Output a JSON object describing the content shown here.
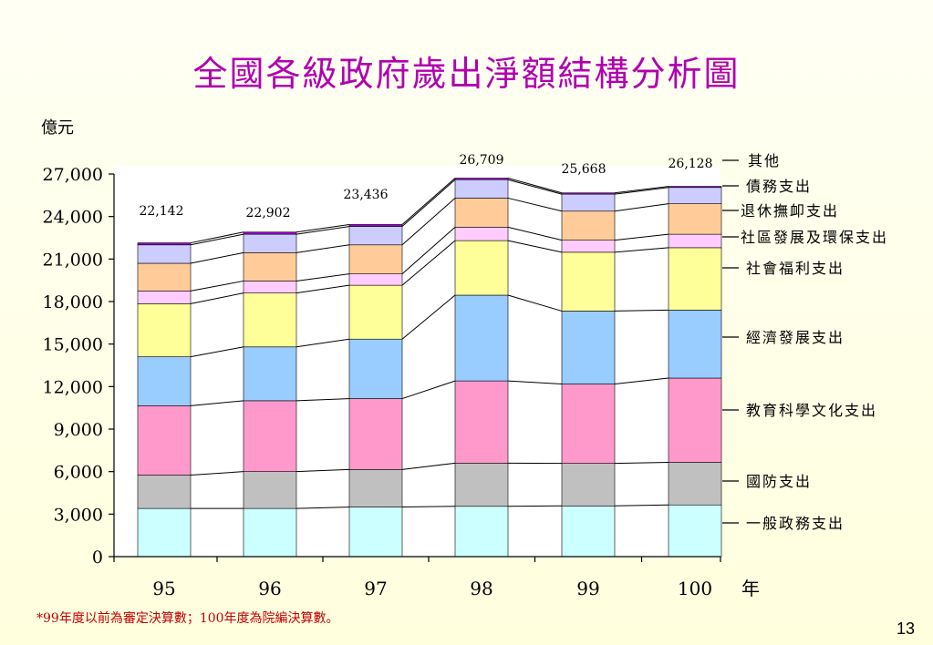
{
  "title": "全國各級政府歲出淨額結構分析圖",
  "footnote": "*99年度以前為審定決算數；100年度為院編決算數。",
  "page_number": "13",
  "chart_data": {
    "type": "bar",
    "stacked": true,
    "title": "全國各級政府歲出淨額結構分析圖",
    "ylabel": "億元",
    "xlabel": "年",
    "ylim": [
      0,
      27000
    ],
    "yticks": [
      0,
      3000,
      6000,
      9000,
      12000,
      15000,
      18000,
      21000,
      24000,
      27000
    ],
    "ytick_labels": [
      "0",
      "3,000",
      "6,000",
      "9,000",
      "12,000",
      "15,000",
      "18,000",
      "21,000",
      "24,000",
      "27,000"
    ],
    "categories": [
      "95",
      "96",
      "97",
      "98",
      "99",
      "100"
    ],
    "totals": [
      22142,
      22902,
      23436,
      26709,
      25668,
      26128
    ],
    "total_labels": [
      "22,142",
      "22,902",
      "23,436",
      "26,709",
      "25,668",
      "26,128"
    ],
    "series": [
      {
        "name": "一般政務支出",
        "color": "#ccffff",
        "values": [
          3400,
          3400,
          3500,
          3550,
          3580,
          3650
        ]
      },
      {
        "name": "國防支出",
        "color": "#c0c0c0",
        "values": [
          2350,
          2600,
          2650,
          3050,
          3000,
          3000
        ]
      },
      {
        "name": "教育科學文化支出",
        "color": "#ff99cc",
        "values": [
          4900,
          5000,
          5000,
          5800,
          5600,
          5950
        ]
      },
      {
        "name": "經濟發展支出",
        "color": "#99ccff",
        "values": [
          3450,
          3800,
          4200,
          6050,
          5150,
          4800
        ]
      },
      {
        "name": "社會福利支出",
        "color": "#ffff99",
        "values": [
          3750,
          3800,
          3800,
          3850,
          4150,
          4400
        ]
      },
      {
        "name": "社區發展及環保支出",
        "color": "#ffccff",
        "values": [
          900,
          850,
          800,
          950,
          850,
          950
        ]
      },
      {
        "name": "退休撫卹支出",
        "color": "#ffcc99",
        "values": [
          1950,
          2000,
          2050,
          2050,
          2050,
          2150
        ]
      },
      {
        "name": "債務支出",
        "color": "#ccccff",
        "values": [
          1300,
          1300,
          1300,
          1300,
          1200,
          1150
        ]
      },
      {
        "name": "其他",
        "color": "#9900cc",
        "values": [
          142,
          152,
          136,
          109,
          88,
          78
        ]
      }
    ],
    "grid": false,
    "legend": "right"
  }
}
